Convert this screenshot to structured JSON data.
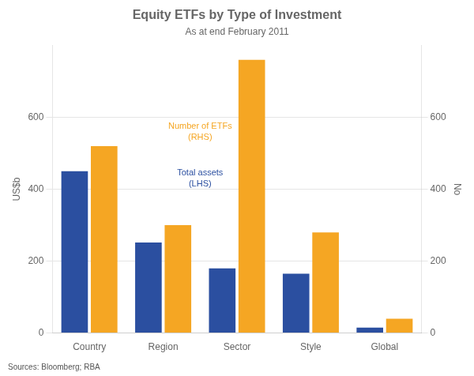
{
  "chart_data": {
    "type": "bar",
    "title": "Equity ETFs by Type of Investment",
    "subtitle": "As at end February 2011",
    "categories": [
      "Country",
      "Region",
      "Sector",
      "Style",
      "Global"
    ],
    "series": [
      {
        "name": "Total assets\n(LHS)",
        "color": "#2b4fa0",
        "values": [
          450,
          252,
          180,
          165,
          15
        ]
      },
      {
        "name": "Number of ETFs\n(RHS)",
        "color": "#f5a623",
        "values": [
          520,
          300,
          760,
          280,
          40
        ],
        "axis": "y2"
      }
    ],
    "ylabel": "US$b",
    "y2label": "No",
    "ylim": [
      0,
      800
    ],
    "yticks": [
      0,
      200,
      400,
      600
    ],
    "y2lim": [
      0,
      800
    ],
    "y2ticks": [
      0,
      200,
      400,
      600
    ],
    "grid": true,
    "source": "Sources: Bloomberg; RBA"
  }
}
